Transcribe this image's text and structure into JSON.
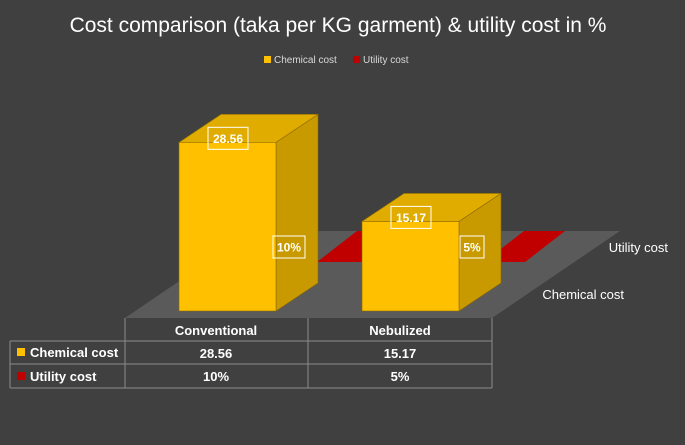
{
  "colors": {
    "background": "#404040",
    "chemical": "#FFC000",
    "chemical_side": "#C99A00",
    "chemical_top": "#E0AC00",
    "utility": "#C00000",
    "floor": "#5A5A5A",
    "grid": "#8C8C8C",
    "text": "#FFFFFF"
  },
  "chart_data": {
    "type": "bar",
    "title": "Cost comparison (taka per KG garment) & utility cost in %",
    "categories": [
      "Conventional",
      "Nebulized"
    ],
    "series": [
      {
        "name": "Chemical cost",
        "values": [
          28.56,
          15.17
        ],
        "display": [
          "28.56",
          "15.17"
        ],
        "color": "#FFC000"
      },
      {
        "name": "Utility cost",
        "values": [
          10,
          5
        ],
        "display": [
          "10%",
          "5%"
        ],
        "color": "#C00000"
      }
    ],
    "depth_axis_labels": [
      "Chemical cost",
      "Utility cost"
    ],
    "legend": "top",
    "data_table": true,
    "grid": false,
    "ylim": [
      0,
      32
    ]
  }
}
